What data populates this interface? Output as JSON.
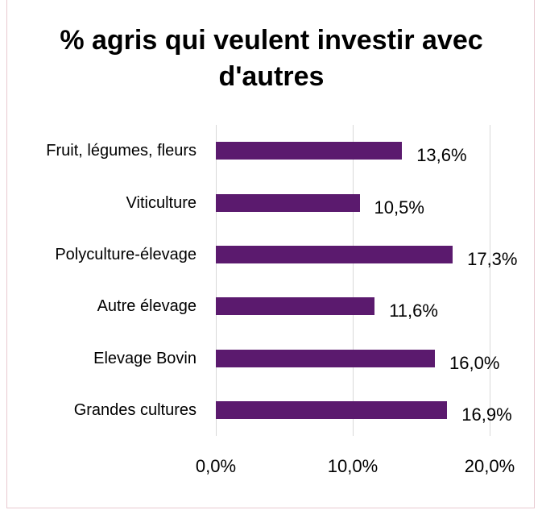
{
  "chart_data": {
    "type": "bar",
    "orientation": "horizontal",
    "title": "% agris qui veulent investir avec d'autres",
    "categories": [
      "Fruit, légumes, fleurs",
      "Viticulture",
      "Polyculture-élevage",
      "Autre élevage",
      "Elevage Bovin",
      "Grandes cultures"
    ],
    "values": [
      13.6,
      10.5,
      17.3,
      11.6,
      16.0,
      16.9
    ],
    "value_labels": [
      "13,6%",
      "10,5%",
      "17,3%",
      "11,6%",
      "16,0%",
      "16,9%"
    ],
    "color": "#5b1a6e",
    "xlim": [
      0,
      20
    ],
    "xticks": [
      {
        "value": 0,
        "label": "0,0%"
      },
      {
        "value": 10,
        "label": "10,0%"
      },
      {
        "value": 20,
        "label": "20,0%"
      }
    ],
    "grid": true
  }
}
